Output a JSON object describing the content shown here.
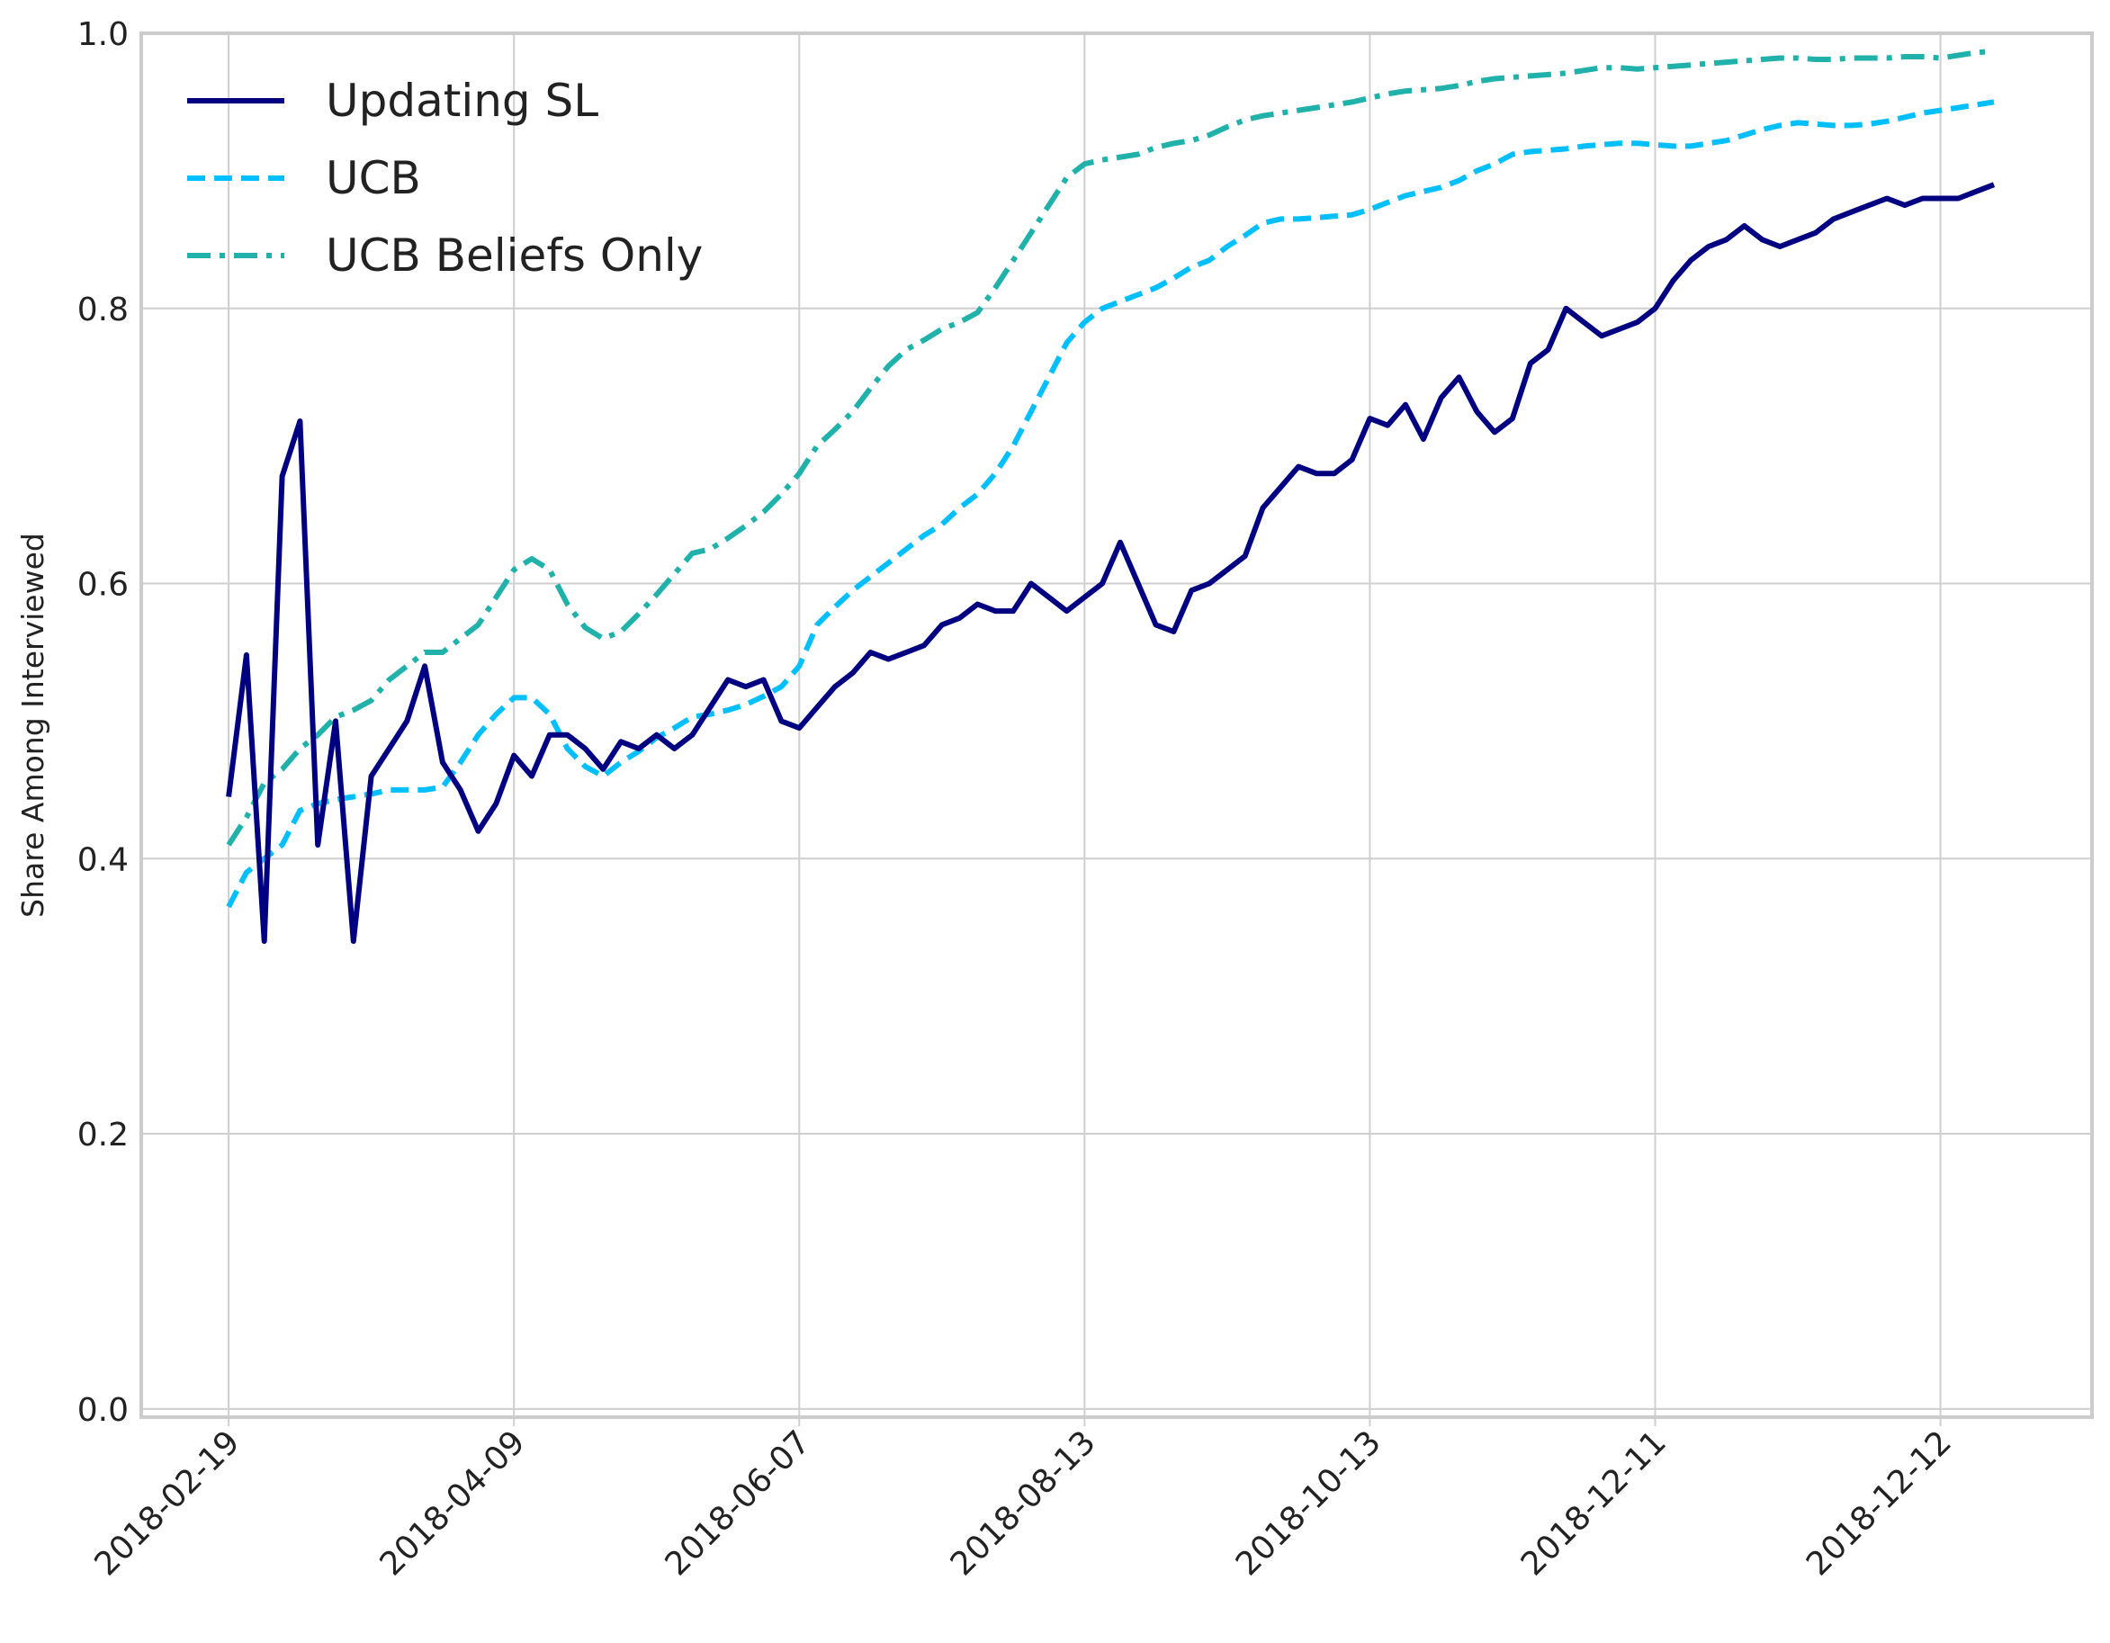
{
  "chart_data": {
    "type": "line",
    "y_label": "Share Among Interviewed",
    "xlim": [
      -4.9,
      104.5
    ],
    "xticks": [
      {
        "value": 0,
        "label": "2018-02-19"
      },
      {
        "value": 16,
        "label": "2018-04-09"
      },
      {
        "value": 32,
        "label": "2018-06-07"
      },
      {
        "value": 48,
        "label": "2018-08-13"
      },
      {
        "value": 64,
        "label": "2018-10-13"
      },
      {
        "value": 80,
        "label": "2018-12-11"
      },
      {
        "value": 96,
        "label": "2018-12-12"
      }
    ],
    "ylim": [
      -0.006,
      1.0
    ],
    "yticks": [
      {
        "value": 0,
        "label": "0.0"
      },
      0.2,
      0.4,
      0.6,
      0.8,
      {
        "value": 1,
        "label": "1.0"
      }
    ],
    "grid": true,
    "legend": "upper left",
    "series": [
      {
        "name": "Updating SL",
        "color": "#000080",
        "style": "solid",
        "values": [
          0.445,
          0.548,
          0.34,
          0.678,
          0.718,
          0.41,
          0.5,
          0.34,
          0.46,
          0.48,
          0.5,
          0.54,
          0.47,
          0.45,
          0.42,
          0.44,
          0.475,
          0.46,
          0.49,
          0.49,
          0.48,
          0.465,
          0.485,
          0.48,
          0.49,
          0.48,
          0.49,
          0.51,
          0.53,
          0.525,
          0.53,
          0.5,
          0.495,
          0.51,
          0.525,
          0.535,
          0.55,
          0.545,
          0.55,
          0.555,
          0.57,
          0.575,
          0.585,
          0.58,
          0.58,
          0.6,
          0.59,
          0.58,
          0.59,
          0.6,
          0.63,
          0.6,
          0.57,
          0.565,
          0.595,
          0.6,
          0.61,
          0.62,
          0.655,
          0.67,
          0.685,
          0.68,
          0.68,
          0.69,
          0.72,
          0.715,
          0.73,
          0.705,
          0.735,
          0.75,
          0.725,
          0.71,
          0.72,
          0.76,
          0.77,
          0.8,
          0.79,
          0.78,
          0.785,
          0.79,
          0.8,
          0.82,
          0.835,
          0.845,
          0.85,
          0.86,
          0.85,
          0.845,
          0.85,
          0.855,
          0.865,
          0.87,
          0.875,
          0.88,
          0.875,
          0.88,
          0.88,
          0.88,
          0.885,
          0.89
        ]
      },
      {
        "name": "UCB",
        "color": "#00bfff",
        "style": "dashed",
        "values": [
          0.365,
          0.39,
          0.4,
          0.41,
          0.435,
          0.44,
          0.443,
          0.445,
          0.447,
          0.45,
          0.45,
          0.45,
          0.452,
          0.47,
          0.49,
          0.505,
          0.517,
          0.517,
          0.505,
          0.48,
          0.467,
          0.46,
          0.47,
          0.478,
          0.488,
          0.495,
          0.503,
          0.505,
          0.508,
          0.512,
          0.518,
          0.525,
          0.54,
          0.57,
          0.583,
          0.595,
          0.605,
          0.615,
          0.625,
          0.635,
          0.643,
          0.655,
          0.665,
          0.68,
          0.7,
          0.725,
          0.75,
          0.775,
          0.79,
          0.8,
          0.805,
          0.81,
          0.815,
          0.822,
          0.83,
          0.835,
          0.845,
          0.853,
          0.862,
          0.865,
          0.865,
          0.866,
          0.867,
          0.868,
          0.872,
          0.877,
          0.882,
          0.885,
          0.888,
          0.893,
          0.9,
          0.905,
          0.912,
          0.914,
          0.915,
          0.916,
          0.918,
          0.919,
          0.92,
          0.92,
          0.919,
          0.918,
          0.918,
          0.92,
          0.922,
          0.926,
          0.93,
          0.933,
          0.935,
          0.934,
          0.933,
          0.933,
          0.934,
          0.936,
          0.939,
          0.942,
          0.944,
          0.946,
          0.948,
          0.95
        ]
      },
      {
        "name": "UCB Beliefs Only",
        "color": "#20b2aa",
        "style": "dashdot",
        "values": [
          0.41,
          0.43,
          0.455,
          0.465,
          0.48,
          0.49,
          0.503,
          0.508,
          0.515,
          0.53,
          0.54,
          0.55,
          0.55,
          0.56,
          0.57,
          0.59,
          0.61,
          0.618,
          0.61,
          0.585,
          0.568,
          0.56,
          0.565,
          0.578,
          0.592,
          0.607,
          0.622,
          0.625,
          0.633,
          0.642,
          0.652,
          0.665,
          0.68,
          0.7,
          0.712,
          0.725,
          0.742,
          0.758,
          0.77,
          0.777,
          0.785,
          0.79,
          0.797,
          0.815,
          0.835,
          0.855,
          0.875,
          0.895,
          0.905,
          0.908,
          0.91,
          0.912,
          0.917,
          0.92,
          0.922,
          0.926,
          0.932,
          0.937,
          0.94,
          0.942,
          0.944,
          0.946,
          0.948,
          0.95,
          0.953,
          0.956,
          0.958,
          0.959,
          0.96,
          0.962,
          0.965,
          0.967,
          0.968,
          0.969,
          0.97,
          0.971,
          0.973,
          0.975,
          0.975,
          0.974,
          0.975,
          0.976,
          0.977,
          0.978,
          0.979,
          0.98,
          0.981,
          0.982,
          0.982,
          0.981,
          0.981,
          0.982,
          0.982,
          0.982,
          0.983,
          0.983,
          0.982,
          0.984,
          0.986,
          0.987
        ]
      }
    ]
  }
}
